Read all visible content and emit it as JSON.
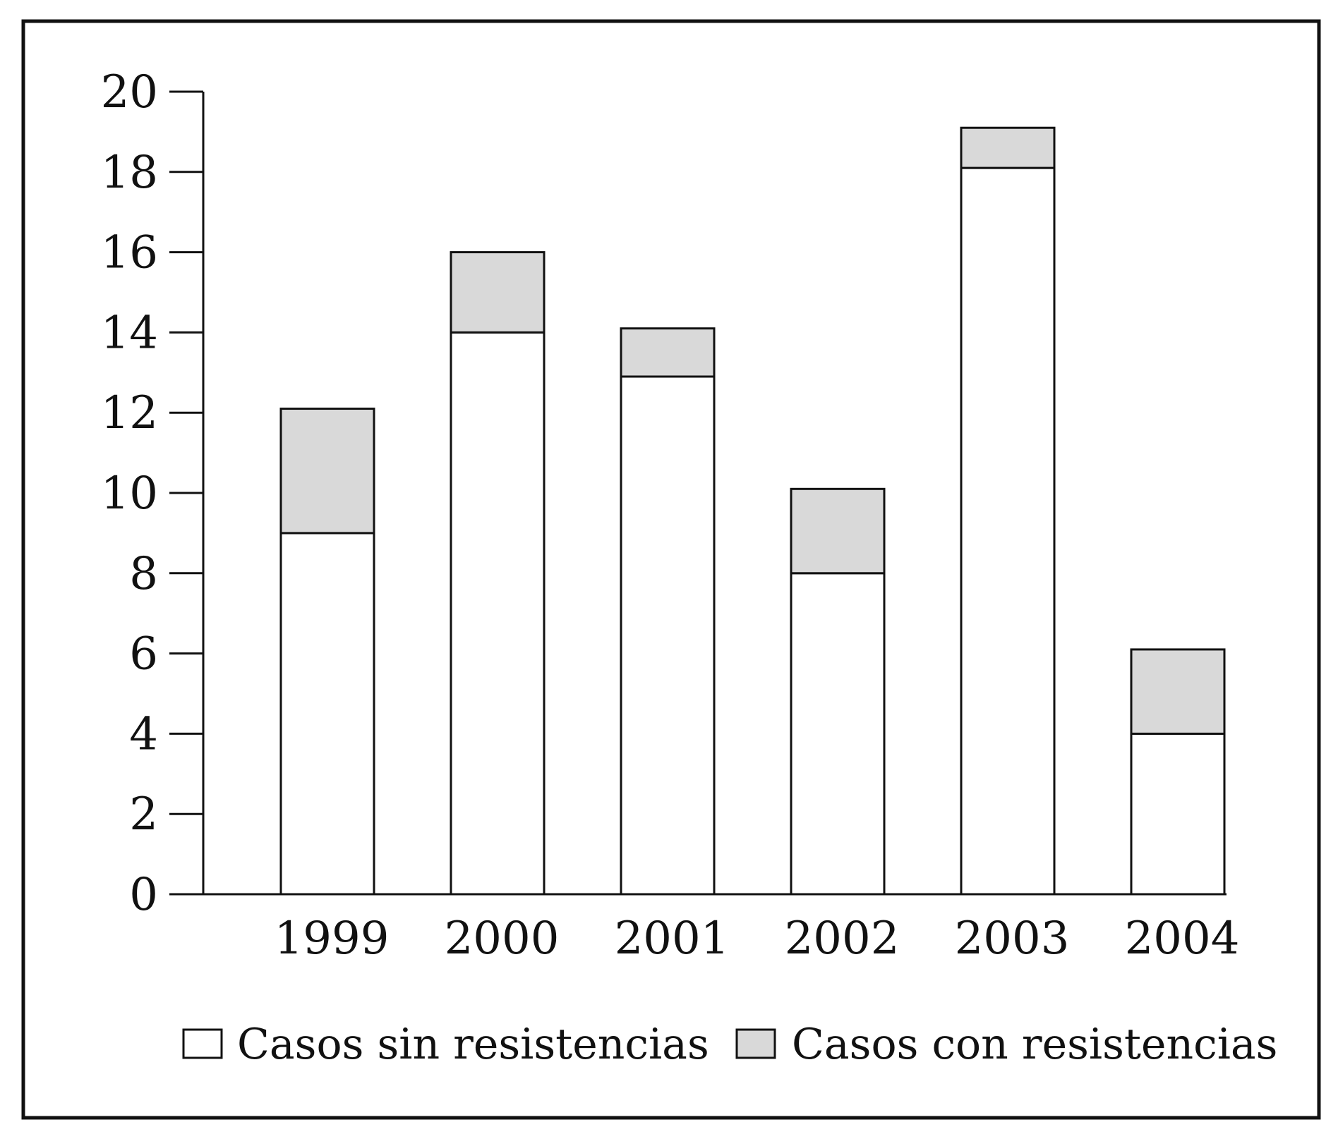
{
  "chart_data": {
    "type": "bar",
    "stacked": true,
    "categories": [
      "1999",
      "2000",
      "2001",
      "2002",
      "2003",
      "2004"
    ],
    "series": [
      {
        "name": "Casos sin resistencias",
        "values": [
          9,
          14,
          12.9,
          8,
          18.1,
          4
        ],
        "color": "#ffffff"
      },
      {
        "name": "Casos con resistencias",
        "values": [
          3.1,
          2,
          1.2,
          2.1,
          1,
          2.1
        ],
        "color": "#d9d9d9"
      }
    ],
    "title": "",
    "xlabel": "",
    "ylabel": "",
    "ylim": [
      0,
      20
    ],
    "yticks": [
      "0",
      "2",
      "4",
      "6",
      "8",
      "10",
      "12",
      "14",
      "16",
      "18",
      "20"
    ],
    "grid": false,
    "legend_position": "bottom"
  }
}
